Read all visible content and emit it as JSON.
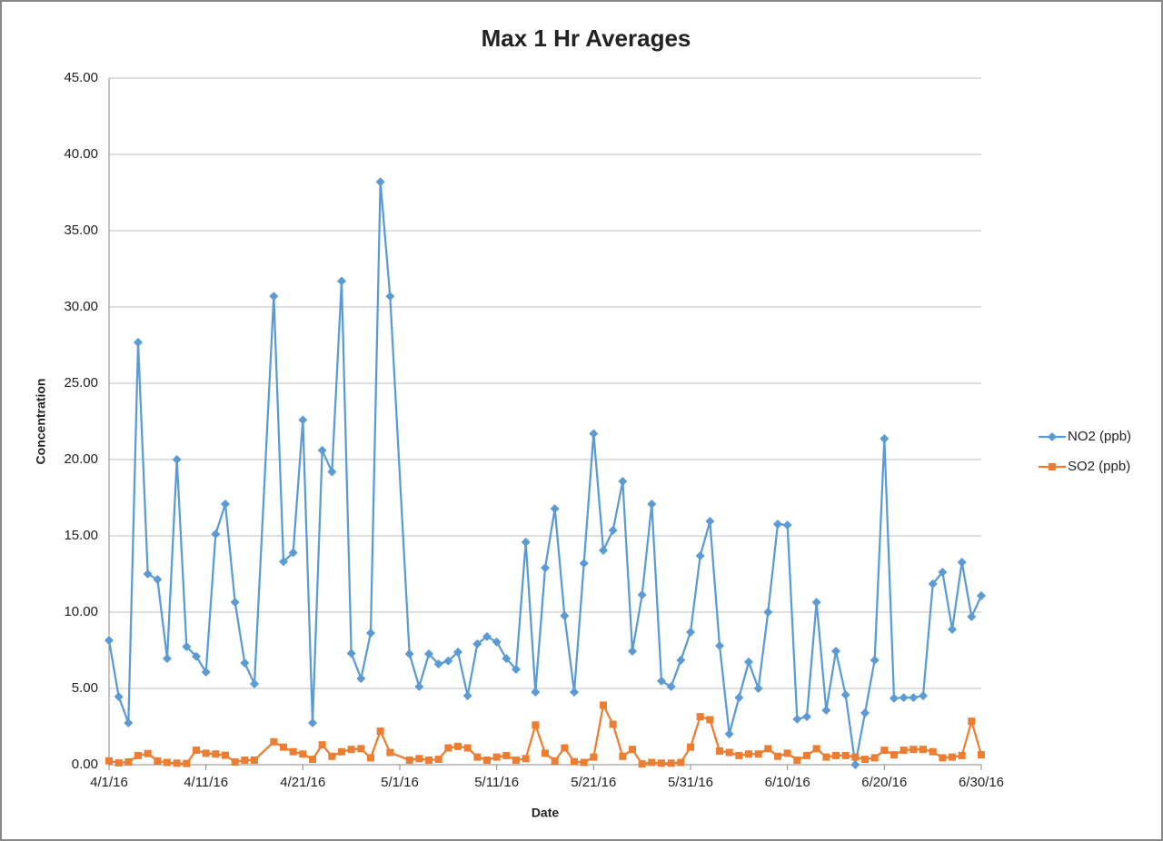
{
  "chart_data": {
    "type": "line",
    "title": "Max 1 Hr Averages",
    "x_label": "Date",
    "y_label": "Concentration",
    "x": [
      "4/1/16",
      "4/2/16",
      "4/3/16",
      "4/4/16",
      "4/5/16",
      "4/6/16",
      "4/7/16",
      "4/8/16",
      "4/9/16",
      "4/10/16",
      "4/11/16",
      "4/12/16",
      "4/13/16",
      "4/14/16",
      "4/15/16",
      "4/16/16",
      "4/18/16",
      "4/19/16",
      "4/20/16",
      "4/21/16",
      "4/22/16",
      "4/23/16",
      "4/24/16",
      "4/25/16",
      "4/26/16",
      "4/27/16",
      "4/28/16",
      "4/29/16",
      "4/30/16",
      "5/2/16",
      "5/3/16",
      "5/4/16",
      "5/5/16",
      "5/6/16",
      "5/7/16",
      "5/8/16",
      "5/9/16",
      "5/10/16",
      "5/11/16",
      "5/12/16",
      "5/13/16",
      "5/14/16",
      "5/15/16",
      "5/16/16",
      "5/17/16",
      "5/18/16",
      "5/19/16",
      "5/20/16",
      "5/21/16",
      "5/22/16",
      "5/23/16",
      "5/24/16",
      "5/25/16",
      "5/26/16",
      "5/27/16",
      "5/28/16",
      "5/29/16",
      "5/30/16",
      "5/31/16",
      "6/1/16",
      "6/2/16",
      "6/3/16",
      "6/4/16",
      "6/5/16",
      "6/6/16",
      "6/7/16",
      "6/8/16",
      "6/9/16",
      "6/10/16",
      "6/11/16",
      "6/12/16",
      "6/13/16",
      "6/14/16",
      "6/15/16",
      "6/16/16",
      "6/17/16",
      "6/18/16",
      "6/19/16",
      "6/20/16",
      "6/21/16",
      "6/22/16",
      "6/23/16",
      "6/24/16",
      "6/25/16",
      "6/26/16",
      "6/27/16",
      "6/28/16",
      "6/29/16",
      "6/30/16"
    ],
    "series": [
      {
        "name": "NO2 (ppb)",
        "color": "#5b9bd5",
        "marker": "diamond",
        "values": [
          8.15,
          4.46,
          2.74,
          27.68,
          12.5,
          12.14,
          6.96,
          20.0,
          7.74,
          7.1,
          6.07,
          15.12,
          17.08,
          10.65,
          6.67,
          5.3,
          30.7,
          13.3,
          13.9,
          22.6,
          2.74,
          20.6,
          19.2,
          31.7,
          7.3,
          5.65,
          8.63,
          38.2,
          30.7,
          7.26,
          5.12,
          7.26,
          6.6,
          6.8,
          7.38,
          4.52,
          7.92,
          8.4,
          8.04,
          6.96,
          6.25,
          14.58,
          4.76,
          12.9,
          16.78,
          9.76,
          4.76,
          13.2,
          21.7,
          14.05,
          15.36,
          18.57,
          7.44,
          11.13,
          17.08,
          5.48,
          5.12,
          6.85,
          8.69,
          13.69,
          15.95,
          7.8,
          2.02,
          4.4,
          6.73,
          5.0,
          10.0,
          15.77,
          15.71,
          2.98,
          3.15,
          10.65,
          3.57,
          7.44,
          4.58,
          0.0,
          3.39,
          6.85,
          21.37,
          4.35,
          4.4,
          4.4,
          4.52,
          11.85,
          12.62,
          8.87,
          13.27,
          9.7,
          11.07
        ]
      },
      {
        "name": "SO2 (ppb)",
        "color": "#ed7d31",
        "marker": "square",
        "values": [
          0.25,
          0.12,
          0.18,
          0.6,
          0.73,
          0.25,
          0.15,
          0.1,
          0.08,
          0.95,
          0.75,
          0.7,
          0.62,
          0.18,
          0.3,
          0.3,
          1.5,
          1.15,
          0.85,
          0.7,
          0.35,
          1.3,
          0.55,
          0.85,
          1.0,
          1.05,
          0.45,
          2.2,
          0.8,
          0.3,
          0.4,
          0.3,
          0.35,
          1.1,
          1.2,
          1.1,
          0.5,
          0.3,
          0.5,
          0.6,
          0.3,
          0.4,
          2.6,
          0.75,
          0.25,
          1.1,
          0.2,
          0.15,
          0.5,
          3.9,
          2.65,
          0.55,
          1.0,
          0.05,
          0.15,
          0.1,
          0.1,
          0.15,
          1.15,
          3.15,
          2.95,
          0.9,
          0.8,
          0.6,
          0.7,
          0.7,
          1.05,
          0.55,
          0.75,
          0.3,
          0.6,
          1.05,
          0.5,
          0.6,
          0.6,
          0.5,
          0.35,
          0.45,
          0.95,
          0.65,
          0.95,
          1.0,
          1.0,
          0.85,
          0.45,
          0.5,
          0.6,
          2.85,
          0.65
        ]
      }
    ],
    "xlim": [
      "4/1/16",
      "6/30/16"
    ],
    "xticks": [
      "4/1/16",
      "4/11/16",
      "4/21/16",
      "5/1/16",
      "5/11/16",
      "5/21/16",
      "5/31/16",
      "6/10/16",
      "6/20/16",
      "6/30/16"
    ],
    "ylim": [
      0,
      45
    ],
    "yticks": [
      {
        "value": 0,
        "label": "0.00"
      },
      {
        "value": 5,
        "label": "5.00"
      },
      {
        "value": 10,
        "label": "10.00"
      },
      {
        "value": 15,
        "label": "15.00"
      },
      {
        "value": 20,
        "label": "20.00"
      },
      {
        "value": 25,
        "label": "25.00"
      },
      {
        "value": 30,
        "label": "30.00"
      },
      {
        "value": 35,
        "label": "35.00"
      },
      {
        "value": 40,
        "label": "40.00"
      },
      {
        "value": 45,
        "label": "45.00"
      }
    ],
    "grid": true,
    "legend": "right"
  }
}
